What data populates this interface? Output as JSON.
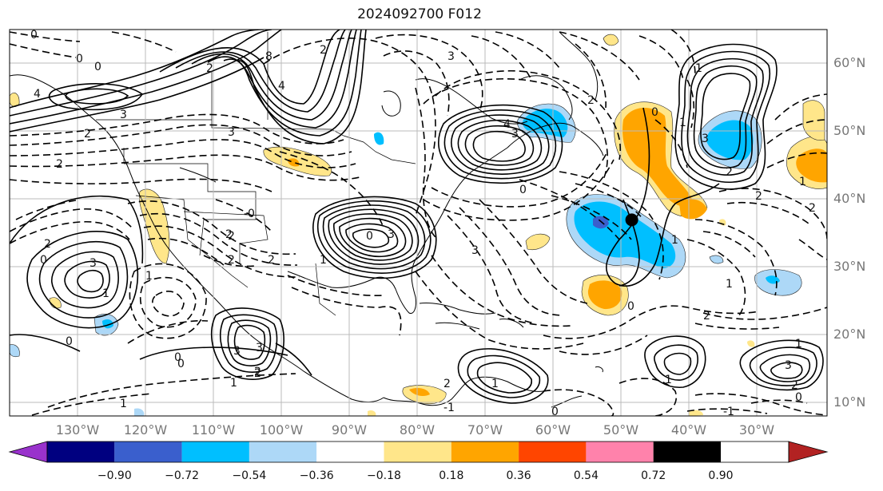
{
  "title": "2024092700 F012",
  "lat_labels": [
    "60°N",
    "50°N",
    "40°N",
    "30°N",
    "20°N",
    "10°N"
  ],
  "lon_labels": [
    "130°W",
    "120°W",
    "110°W",
    "100°W",
    "90°W",
    "80°W",
    "70°W",
    "60°W",
    "50°W",
    "40°W",
    "30°W"
  ],
  "colorbar": {
    "colors": [
      "#9932cc",
      "#000080",
      "#3a5fcd",
      "#00bfff",
      "#add8f7",
      "#ffffff",
      "#ffe68a",
      "#ffa500",
      "#ff4500",
      "#b22222",
      "#ff82ab"
    ],
    "tick_labels": [
      "−0.90",
      "−0.72",
      "−0.54",
      "−0.36",
      "−0.18",
      "0.18",
      "0.36",
      "0.54",
      "0.72",
      "0.90"
    ]
  },
  "contour_labels": [
    "0",
    "0",
    "4",
    "3",
    "2",
    "2",
    "8",
    "4",
    "3",
    "2",
    "0",
    "2",
    "3",
    "4",
    "3",
    "2",
    "0",
    "3",
    "2",
    "2",
    "2",
    "0",
    "3",
    "1",
    "0",
    "1",
    "2",
    "3",
    "3",
    "0",
    "2",
    "1",
    "0",
    "3",
    "1",
    "2",
    "1",
    "1",
    "0",
    "1",
    "0",
    "-1",
    "2",
    "1",
    "3",
    "1",
    "2",
    "2",
    "0",
    "3",
    "2",
    "1",
    "1",
    "-1",
    "1",
    "0",
    "-0",
    "2",
    "2",
    "2",
    "0",
    "1"
  ],
  "storm_marker": {
    "lon": -48.4,
    "lat": 36.9
  }
}
